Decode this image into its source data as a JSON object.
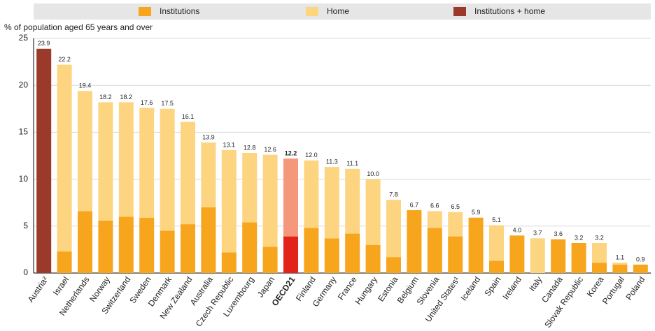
{
  "chart_data": {
    "type": "stacked_bar",
    "y_label": "% of population aged 65 years and over",
    "categories": [
      "Austria²",
      "Israel",
      "Netherlands",
      "Norway",
      "Switzerland",
      "Sweden",
      "Denmark",
      "New Zealand",
      "Australia",
      "Czech Republic",
      "Luxembourg",
      "Japan",
      "OECD21",
      "Finland",
      "Germany",
      "France",
      "Hungary",
      "Estonia",
      "Belgium",
      "Slovenia",
      "United States¹",
      "Iceland",
      "Spain",
      "Ireland",
      "Italy",
      "Canada",
      "Slovak Republic",
      "Korea",
      "Portugal",
      "Poland"
    ],
    "series": [
      {
        "name": "Institutions",
        "color": "#f7a51c",
        "highlight_color": "#e2231a",
        "values": [
          null,
          2.3,
          6.6,
          5.6,
          6.0,
          5.9,
          4.5,
          5.2,
          7.0,
          2.2,
          5.4,
          2.8,
          3.9,
          4.8,
          3.7,
          4.2,
          3.0,
          1.7,
          6.7,
          4.8,
          3.9,
          5.9,
          1.3,
          4.0,
          0,
          3.6,
          3.2,
          1.1,
          0.9,
          0.9
        ]
      },
      {
        "name": "Home",
        "color": "#fdd580",
        "highlight_color": "#f4977a",
        "values": [
          null,
          19.9,
          12.8,
          12.6,
          12.2,
          11.7,
          13.0,
          10.9,
          6.9,
          10.9,
          7.4,
          9.8,
          8.3,
          7.2,
          7.6,
          6.9,
          7.0,
          6.1,
          0,
          1.8,
          2.6,
          0,
          3.8,
          0,
          3.7,
          0,
          0,
          2.1,
          0.2,
          0
        ]
      },
      {
        "name": "Institutions + home",
        "color": "#9b3a2b",
        "highlight_color": "#9b3a2b",
        "values": [
          23.9,
          null,
          null,
          null,
          null,
          null,
          null,
          null,
          null,
          null,
          null,
          null,
          null,
          null,
          null,
          null,
          null,
          null,
          null,
          null,
          null,
          null,
          null,
          null,
          null,
          null,
          null,
          null,
          null,
          null
        ]
      }
    ],
    "totals": [
      23.9,
      22.2,
      19.4,
      18.2,
      18.2,
      17.6,
      17.5,
      16.1,
      13.9,
      13.1,
      12.8,
      12.6,
      12.2,
      12.0,
      11.3,
      11.1,
      10.0,
      7.8,
      6.7,
      6.6,
      6.5,
      5.9,
      5.1,
      4.0,
      3.7,
      3.6,
      3.2,
      3.2,
      1.1,
      0.9
    ],
    "total_labels": [
      "23.9",
      "22.2",
      "19.4",
      "18.2",
      "18.2",
      "17.6",
      "17.5",
      "16.1",
      "13.9",
      "13.1",
      "12.8",
      "12.6",
      "12.2",
      "12.0",
      "11.3",
      "11.1",
      "10.0",
      "7.8",
      "6.7",
      "6.6",
      "6.5",
      "5.9",
      "5.1",
      "4.0",
      "3.7",
      "3.6",
      "3.2",
      "3.2",
      "1.1",
      "0.9"
    ],
    "highlight": "OECD21",
    "ylim": [
      0,
      25
    ],
    "yticks": [
      0,
      5,
      10,
      15,
      20,
      25
    ],
    "grid": true,
    "legend": "top"
  }
}
